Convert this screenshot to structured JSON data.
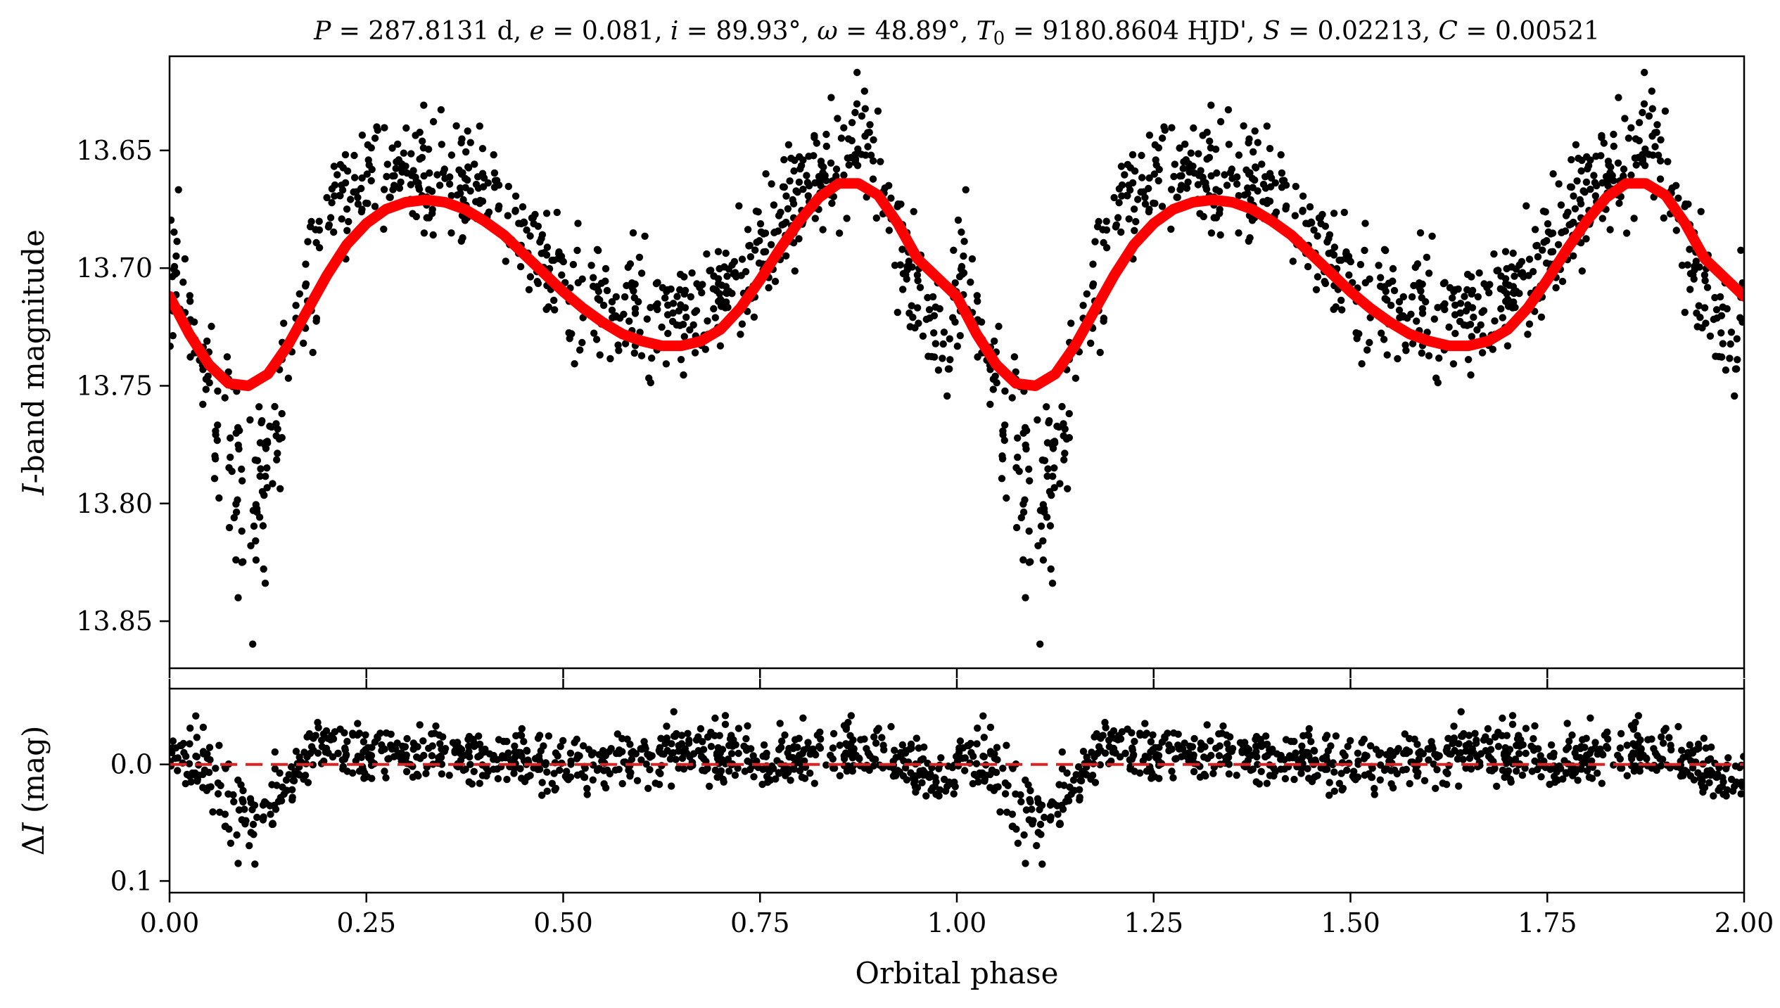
{
  "title": {
    "p_sym": "P",
    "p_val": " = 287.8131 d, ",
    "e_sym": "e",
    "e_val": " = 0.081, ",
    "i_sym": "i",
    "i_val": " = 89.93°, ",
    "w_sym": "ω",
    "w_val": " = 48.89°, ",
    "t_sym": "T",
    "t_sub": "0",
    "t_val": " = 9180.8604 HJD', ",
    "s_sym": "S",
    "s_val": " = 0.02213, ",
    "c_sym": "C",
    "c_val": " = 0.00521"
  },
  "chart_data": [
    {
      "type": "scatter",
      "panel": "top",
      "ylabel_italic": "I",
      "ylabel_rest": "-band magnitude",
      "xlim": [
        0,
        2
      ],
      "ylim": [
        13.87,
        13.61
      ],
      "y_inverted": true,
      "yticks": [
        13.65,
        13.7,
        13.75,
        13.8,
        13.85
      ],
      "ytick_labels": [
        "13.65",
        "13.70",
        "13.75",
        "13.80",
        "13.85"
      ],
      "xticks": [
        0,
        0.25,
        0.5,
        0.75,
        1.0,
        1.25,
        1.5,
        1.75,
        2.0
      ],
      "series": [
        {
          "kind": "scatter",
          "color": "#000000",
          "approx_points": 1600,
          "points_per_phase": [
            [
              0.0,
              13.7
            ],
            [
              0.02,
              13.715
            ],
            [
              0.04,
              13.735
            ],
            [
              0.06,
              13.76
            ],
            [
              0.08,
              13.79
            ],
            [
              0.1,
              13.795
            ],
            [
              0.12,
              13.785
            ],
            [
              0.14,
              13.76
            ],
            [
              0.16,
              13.725
            ],
            [
              0.18,
              13.7
            ],
            [
              0.2,
              13.68
            ],
            [
              0.22,
              13.665
            ],
            [
              0.25,
              13.66
            ],
            [
              0.28,
              13.655
            ],
            [
              0.31,
              13.658
            ],
            [
              0.34,
              13.662
            ],
            [
              0.37,
              13.66
            ],
            [
              0.4,
              13.662
            ],
            [
              0.43,
              13.672
            ],
            [
              0.46,
              13.69
            ],
            [
              0.49,
              13.705
            ],
            [
              0.52,
              13.712
            ],
            [
              0.55,
              13.715
            ],
            [
              0.58,
              13.718
            ],
            [
              0.61,
              13.722
            ],
            [
              0.64,
              13.724
            ],
            [
              0.67,
              13.72
            ],
            [
              0.7,
              13.71
            ],
            [
              0.73,
              13.7
            ],
            [
              0.76,
              13.688
            ],
            [
              0.79,
              13.675
            ],
            [
              0.82,
              13.662
            ],
            [
              0.85,
              13.652
            ],
            [
              0.87,
              13.648
            ],
            [
              0.89,
              13.652
            ],
            [
              0.91,
              13.668
            ],
            [
              0.93,
              13.69
            ],
            [
              0.95,
              13.712
            ],
            [
              0.97,
              13.73
            ],
            [
              0.99,
              13.742
            ]
          ]
        },
        {
          "kind": "line",
          "name": "",
          "color": "#ff0000",
          "x": [
            0.0,
            0.025,
            0.05,
            0.075,
            0.1,
            0.125,
            0.15,
            0.175,
            0.2,
            0.225,
            0.25,
            0.275,
            0.3,
            0.325,
            0.35,
            0.375,
            0.4,
            0.425,
            0.45,
            0.475,
            0.5,
            0.525,
            0.55,
            0.575,
            0.6,
            0.625,
            0.65,
            0.675,
            0.7,
            0.725,
            0.75,
            0.775,
            0.8,
            0.825,
            0.85,
            0.875,
            0.9,
            0.925,
            0.95,
            0.975,
            1.0,
            1.025,
            1.05,
            1.075,
            1.1,
            1.125,
            1.15,
            1.175,
            1.2,
            1.225,
            1.25,
            1.275,
            1.3,
            1.325,
            1.35,
            1.375,
            1.4,
            1.425,
            1.45,
            1.475,
            1.5,
            1.525,
            1.55,
            1.575,
            1.6,
            1.625,
            1.65,
            1.675,
            1.7,
            1.725,
            1.75,
            1.775,
            1.8,
            1.825,
            1.85,
            1.875,
            1.9,
            1.925,
            1.95,
            1.975,
            2.0
          ],
          "y": [
            13.712,
            13.728,
            13.741,
            13.749,
            13.75,
            13.745,
            13.733,
            13.718,
            13.703,
            13.69,
            13.681,
            13.675,
            13.672,
            13.671,
            13.672,
            13.675,
            13.68,
            13.686,
            13.694,
            13.702,
            13.71,
            13.717,
            13.723,
            13.728,
            13.731,
            13.733,
            13.733,
            13.731,
            13.726,
            13.717,
            13.705,
            13.692,
            13.68,
            13.67,
            13.664,
            13.664,
            13.669,
            13.681,
            13.696,
            13.704,
            13.712,
            13.728,
            13.741,
            13.749,
            13.75,
            13.745,
            13.733,
            13.718,
            13.703,
            13.69,
            13.681,
            13.675,
            13.672,
            13.671,
            13.672,
            13.675,
            13.68,
            13.686,
            13.694,
            13.702,
            13.71,
            13.717,
            13.723,
            13.728,
            13.731,
            13.733,
            13.733,
            13.731,
            13.726,
            13.717,
            13.705,
            13.692,
            13.68,
            13.67,
            13.664,
            13.664,
            13.669,
            13.681,
            13.696,
            13.704,
            13.712
          ]
        }
      ]
    },
    {
      "type": "scatter",
      "panel": "bottom",
      "ylabel_delta": "Δ",
      "ylabel_italic": "I",
      "ylabel_rest": " (mag)",
      "xlabel": "Orbital phase",
      "xlim": [
        0,
        2
      ],
      "ylim": [
        0.11,
        -0.065
      ],
      "y_inverted": true,
      "yticks": [
        0.0,
        0.1
      ],
      "ytick_labels": [
        "0.0",
        "0.1"
      ],
      "xticks": [
        0,
        0.25,
        0.5,
        0.75,
        1.0,
        1.25,
        1.5,
        1.75,
        2.0
      ],
      "xtick_labels": [
        "0.00",
        "0.25",
        "0.50",
        "0.75",
        "1.00",
        "1.25",
        "1.50",
        "1.75",
        "2.00"
      ],
      "series": [
        {
          "kind": "scatter",
          "color": "#000000",
          "approx_points": 1600,
          "points_per_phase": [
            [
              0.0,
              -0.01
            ],
            [
              0.02,
              -0.005
            ],
            [
              0.04,
              0.0
            ],
            [
              0.06,
              0.015
            ],
            [
              0.08,
              0.035
            ],
            [
              0.1,
              0.045
            ],
            [
              0.12,
              0.04
            ],
            [
              0.14,
              0.025
            ],
            [
              0.16,
              0.008
            ],
            [
              0.18,
              -0.01
            ],
            [
              0.2,
              -0.015
            ],
            [
              0.25,
              -0.012
            ],
            [
              0.3,
              -0.01
            ],
            [
              0.35,
              -0.01
            ],
            [
              0.4,
              -0.01
            ],
            [
              0.45,
              -0.005
            ],
            [
              0.5,
              0.005
            ],
            [
              0.55,
              -0.002
            ],
            [
              0.6,
              -0.01
            ],
            [
              0.65,
              -0.01
            ],
            [
              0.7,
              -0.008
            ],
            [
              0.75,
              -0.005
            ],
            [
              0.8,
              -0.008
            ],
            [
              0.85,
              -0.012
            ],
            [
              0.87,
              -0.01
            ],
            [
              0.9,
              -0.01
            ],
            [
              0.93,
              -0.005
            ],
            [
              0.96,
              0.01
            ],
            [
              0.99,
              0.015
            ]
          ]
        },
        {
          "kind": "line",
          "name": "",
          "color": "#dd2222",
          "dash": "dashed",
          "y_const": 0.0
        }
      ]
    }
  ]
}
